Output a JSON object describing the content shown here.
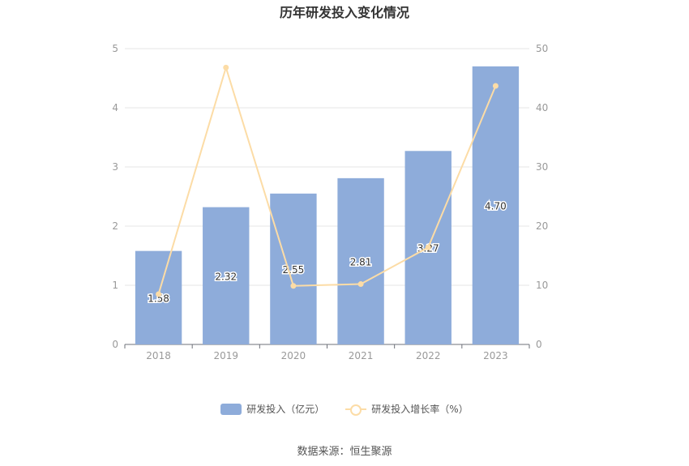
{
  "chart_data": {
    "type": "bar",
    "title": "历年研发投入变化情况",
    "categories": [
      "2018",
      "2019",
      "2020",
      "2021",
      "2022",
      "2023"
    ],
    "series": [
      {
        "name": "研发投入（亿元）",
        "type": "bar",
        "axis": "left",
        "values": [
          1.58,
          2.32,
          2.55,
          2.81,
          3.27,
          4.7
        ],
        "labels": [
          "1.58",
          "2.32",
          "2.55",
          "2.81",
          "3.27",
          "4.70"
        ]
      },
      {
        "name": "研发投入增长率（%）",
        "type": "line",
        "axis": "right",
        "values": [
          8.5,
          46.8,
          9.9,
          10.2,
          16.4,
          43.7
        ]
      }
    ],
    "y_left": {
      "ylim": [
        0,
        5
      ],
      "ticks": [
        "0",
        "1",
        "2",
        "3",
        "4",
        "5"
      ]
    },
    "y_right": {
      "ylim": [
        0,
        50
      ],
      "ticks": [
        "0",
        "10",
        "20",
        "30",
        "40",
        "50"
      ]
    },
    "grid": true,
    "legend_position": "bottom",
    "colors": {
      "bar": "#8eacda",
      "line": "#fcdca6",
      "grid": "#e6e6e6",
      "axis": "#6e7079",
      "tick": "#999999"
    }
  },
  "footer": {
    "source": "数据来源：恒生聚源"
  }
}
